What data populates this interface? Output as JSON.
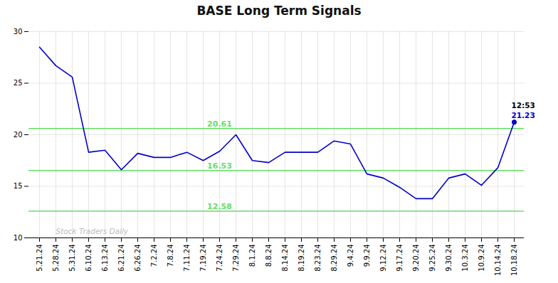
{
  "chart_data": {
    "type": "line",
    "title": "BASE Long Term Signals",
    "categories": [
      "5.21.24",
      "5.28.24",
      "5.31.24",
      "6.10.24",
      "6.13.24",
      "6.21.24",
      "6.26.24",
      "7.2.24",
      "7.8.24",
      "7.11.24",
      "7.19.24",
      "7.24.24",
      "7.29.24",
      "8.1.24",
      "8.8.24",
      "8.14.24",
      "8.19.24",
      "8.23.24",
      "8.29.24",
      "9.4.24",
      "9.9.24",
      "9.12.24",
      "9.17.24",
      "9.20.24",
      "9.25.24",
      "9.30.24",
      "10.3.24",
      "10.9.24",
      "10.14.24",
      "10.18.24"
    ],
    "values": [
      28.5,
      26.7,
      25.6,
      18.3,
      18.5,
      16.6,
      18.2,
      17.8,
      17.8,
      18.3,
      17.5,
      18.4,
      20.0,
      17.5,
      17.3,
      18.3,
      18.3,
      18.3,
      19.4,
      19.1,
      16.2,
      15.8,
      14.9,
      13.8,
      13.8,
      15.8,
      16.2,
      15.1,
      16.8,
      21.23
    ],
    "color": "#0000cc",
    "ylim": [
      10,
      30
    ],
    "yticks": [
      10,
      15,
      20,
      25,
      30
    ],
    "grid": true,
    "reference_lines": [
      {
        "value": 20.61,
        "label": "20.61",
        "label_x": "7.24.24",
        "color": "#66dd66"
      },
      {
        "value": 16.53,
        "label": "16.53",
        "label_x": "7.24.24",
        "color": "#66dd66"
      },
      {
        "value": 12.58,
        "label": "12.58",
        "label_x": "7.24.24",
        "color": "#66dd66"
      }
    ],
    "last_point": {
      "x": "10.18.24",
      "y": 21.23
    },
    "annotations": [
      {
        "text": "12:53",
        "x": "10.18.24",
        "y": 21.23,
        "color": "#000000"
      },
      {
        "text": "21.23",
        "x": "10.18.24",
        "y": 21.23,
        "color": "#0000cc"
      }
    ],
    "watermark": {
      "text": "Stock Traders Daily",
      "x": "5.28.24",
      "y": 10.35,
      "color": "#bbbbbb"
    }
  }
}
